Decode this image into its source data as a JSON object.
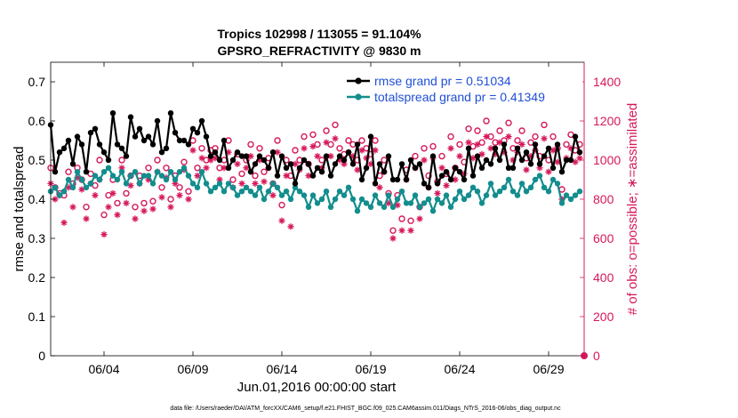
{
  "chart_data": {
    "type": "line",
    "title_line1": "Tropics 102998 / 113055 = 91.104%",
    "title_line2": "GPSRO_REFRACTIVITY @ 9830 m",
    "xlabel": "Jun.01,2016 00:00:00 start",
    "ylabel_left": "rmse and totalspread",
    "ylabel_right": "# of obs: o=possible; ∗=assimilated",
    "footer": "data file: /Users/raeder/DAI/ATM_forcXX/CAM6_setup/f.e21.FHIST_BGC.f09_025.CAM6assim.011/Diags_NTrS_2016-06/obs_diag_output.nc",
    "x_range": [
      1,
      31
    ],
    "x_ticks": [
      {
        "x": 4.0,
        "label": "06/04"
      },
      {
        "x": 9.0,
        "label": "06/09"
      },
      {
        "x": 14.0,
        "label": "06/14"
      },
      {
        "x": 19.0,
        "label": "06/19"
      },
      {
        "x": 24.0,
        "label": "06/24"
      },
      {
        "x": 29.0,
        "label": "06/29"
      }
    ],
    "ylim_left": [
      0,
      0.75
    ],
    "yticks_left": [
      "0",
      "0.1",
      "0.2",
      "0.3",
      "0.4",
      "0.5",
      "0.6",
      "0.7"
    ],
    "ylim_right": [
      0,
      1500
    ],
    "yticks_right": [
      "0",
      "200",
      "400",
      "600",
      "800",
      "1000",
      "1200",
      "1400"
    ],
    "colors": {
      "rmse": "#000000",
      "spread": "#138d8d",
      "obs": "#d6185c",
      "legend_text": "#1f4fd6"
    },
    "series": [
      {
        "name": "rmse grand pr = 0.51034",
        "axis": "left",
        "x": [
          1.0,
          1.25,
          1.5,
          1.75,
          2.0,
          2.25,
          2.5,
          2.75,
          3.0,
          3.25,
          3.5,
          3.75,
          4.0,
          4.25,
          4.5,
          4.75,
          5.0,
          5.25,
          5.5,
          5.75,
          6.0,
          6.25,
          6.5,
          6.75,
          7.0,
          7.25,
          7.5,
          7.75,
          8.0,
          8.25,
          8.5,
          8.75,
          9.0,
          9.25,
          9.5,
          9.75,
          10.0,
          10.25,
          10.5,
          10.75,
          11.0,
          11.25,
          11.5,
          11.75,
          12.0,
          12.25,
          12.5,
          12.75,
          13.0,
          13.25,
          13.5,
          13.75,
          14.0,
          14.25,
          14.5,
          14.75,
          15.0,
          15.25,
          15.5,
          15.75,
          16.0,
          16.25,
          16.5,
          16.75,
          17.0,
          17.25,
          17.5,
          17.75,
          18.0,
          18.25,
          18.5,
          18.75,
          19.0,
          19.25,
          19.5,
          19.75,
          20.0,
          20.25,
          20.5,
          20.75,
          21.0,
          21.25,
          21.5,
          21.75,
          22.0,
          22.25,
          22.5,
          22.75,
          23.0,
          23.25,
          23.5,
          23.75,
          24.0,
          24.25,
          24.5,
          24.75,
          25.0,
          25.25,
          25.5,
          25.75,
          26.0,
          26.25,
          26.5,
          26.75,
          27.0,
          27.25,
          27.5,
          27.75,
          28.0,
          28.25,
          28.5,
          28.75,
          29.0,
          29.25,
          29.5,
          29.75,
          30.0,
          30.25,
          30.5,
          30.75
        ],
        "values": [
          0.59,
          0.47,
          0.52,
          0.53,
          0.55,
          0.49,
          0.56,
          0.54,
          0.47,
          0.57,
          0.58,
          0.54,
          0.52,
          0.5,
          0.62,
          0.54,
          0.53,
          0.51,
          0.61,
          0.56,
          0.58,
          0.55,
          0.56,
          0.54,
          0.6,
          0.52,
          0.53,
          0.62,
          0.57,
          0.55,
          0.55,
          0.54,
          0.58,
          0.57,
          0.6,
          0.56,
          0.51,
          0.52,
          0.5,
          0.55,
          0.48,
          0.5,
          0.52,
          0.51,
          0.51,
          0.47,
          0.49,
          0.51,
          0.5,
          0.48,
          0.52,
          0.46,
          0.51,
          0.48,
          0.49,
          0.44,
          0.48,
          0.5,
          0.49,
          0.46,
          0.48,
          0.47,
          0.51,
          0.46,
          0.49,
          0.51,
          0.5,
          0.52,
          0.49,
          0.54,
          0.45,
          0.48,
          0.56,
          0.44,
          0.49,
          0.47,
          0.51,
          0.45,
          0.45,
          0.49,
          0.45,
          0.5,
          0.48,
          0.49,
          0.44,
          0.43,
          0.51,
          0.44,
          0.46,
          0.47,
          0.45,
          0.48,
          0.47,
          0.45,
          0.53,
          0.46,
          0.51,
          0.48,
          0.5,
          0.49,
          0.53,
          0.5,
          0.54,
          0.48,
          0.48,
          0.53,
          0.5,
          0.52,
          0.49,
          0.54,
          0.49,
          0.51,
          0.53,
          0.48,
          0.54,
          0.47,
          0.5,
          0.5,
          0.56,
          0.52
        ]
      },
      {
        "name": "totalspread grand pr = 0.41349",
        "axis": "left",
        "x": [
          1.0,
          1.25,
          1.5,
          1.75,
          2.0,
          2.25,
          2.5,
          2.75,
          3.0,
          3.25,
          3.5,
          3.75,
          4.0,
          4.25,
          4.5,
          4.75,
          5.0,
          5.25,
          5.5,
          5.75,
          6.0,
          6.25,
          6.5,
          6.75,
          7.0,
          7.25,
          7.5,
          7.75,
          8.0,
          8.25,
          8.5,
          8.75,
          9.0,
          9.25,
          9.5,
          9.75,
          10.0,
          10.25,
          10.5,
          10.75,
          11.0,
          11.25,
          11.5,
          11.75,
          12.0,
          12.25,
          12.5,
          12.75,
          13.0,
          13.25,
          13.5,
          13.75,
          14.0,
          14.25,
          14.5,
          14.75,
          15.0,
          15.25,
          15.5,
          15.75,
          16.0,
          16.25,
          16.5,
          16.75,
          17.0,
          17.25,
          17.5,
          17.75,
          18.0,
          18.25,
          18.5,
          18.75,
          19.0,
          19.25,
          19.5,
          19.75,
          20.0,
          20.25,
          20.5,
          20.75,
          21.0,
          21.25,
          21.5,
          21.75,
          22.0,
          22.25,
          22.5,
          22.75,
          23.0,
          23.25,
          23.5,
          23.75,
          24.0,
          24.25,
          24.5,
          24.75,
          25.0,
          25.25,
          25.5,
          25.75,
          26.0,
          26.25,
          26.5,
          26.75,
          27.0,
          27.25,
          27.5,
          27.75,
          28.0,
          28.25,
          28.5,
          28.75,
          29.0,
          29.25,
          29.5,
          29.75,
          30.0,
          30.25,
          30.5,
          30.75
        ],
        "values": [
          0.42,
          0.43,
          0.41,
          0.42,
          0.45,
          0.43,
          0.47,
          0.45,
          0.43,
          0.44,
          0.46,
          0.45,
          0.47,
          0.48,
          0.46,
          0.45,
          0.47,
          0.44,
          0.46,
          0.47,
          0.44,
          0.46,
          0.46,
          0.44,
          0.47,
          0.46,
          0.45,
          0.47,
          0.45,
          0.47,
          0.48,
          0.46,
          0.44,
          0.43,
          0.47,
          0.44,
          0.42,
          0.43,
          0.44,
          0.42,
          0.44,
          0.43,
          0.41,
          0.42,
          0.43,
          0.42,
          0.41,
          0.43,
          0.4,
          0.42,
          0.44,
          0.43,
          0.41,
          0.42,
          0.4,
          0.43,
          0.42,
          0.41,
          0.38,
          0.41,
          0.39,
          0.4,
          0.42,
          0.38,
          0.4,
          0.42,
          0.41,
          0.43,
          0.4,
          0.37,
          0.4,
          0.39,
          0.38,
          0.41,
          0.39,
          0.38,
          0.41,
          0.38,
          0.4,
          0.42,
          0.39,
          0.39,
          0.41,
          0.38,
          0.39,
          0.4,
          0.37,
          0.4,
          0.39,
          0.41,
          0.38,
          0.4,
          0.42,
          0.4,
          0.41,
          0.43,
          0.42,
          0.39,
          0.41,
          0.44,
          0.41,
          0.42,
          0.43,
          0.45,
          0.42,
          0.41,
          0.44,
          0.42,
          0.43,
          0.45,
          0.46,
          0.43,
          0.42,
          0.45,
          0.44,
          0.39,
          0.41,
          0.4,
          0.41,
          0.42
        ]
      }
    ],
    "obs_possible": {
      "name": "possible",
      "axis": "right",
      "x": [
        1.0,
        1.25,
        1.5,
        1.75,
        2.0,
        2.25,
        2.5,
        2.75,
        3.0,
        3.25,
        3.5,
        3.75,
        4.0,
        4.25,
        4.5,
        4.75,
        5.0,
        5.25,
        5.5,
        5.75,
        6.0,
        6.25,
        6.5,
        6.75,
        7.0,
        7.25,
        7.5,
        7.75,
        8.0,
        8.25,
        8.5,
        8.75,
        9.0,
        9.25,
        9.5,
        9.75,
        10.0,
        10.25,
        10.5,
        10.75,
        11.0,
        11.25,
        11.5,
        11.75,
        12.0,
        12.25,
        12.5,
        12.75,
        13.0,
        13.25,
        13.5,
        13.75,
        14.0,
        14.25,
        14.5,
        14.75,
        15.0,
        15.25,
        15.5,
        15.75,
        16.0,
        16.25,
        16.5,
        16.75,
        17.0,
        17.25,
        17.5,
        17.75,
        18.0,
        18.25,
        18.5,
        18.75,
        19.0,
        19.25,
        19.5,
        19.75,
        20.0,
        20.25,
        20.5,
        20.75,
        21.0,
        21.25,
        21.5,
        21.75,
        22.0,
        22.25,
        22.5,
        22.75,
        23.0,
        23.25,
        23.5,
        23.75,
        24.0,
        24.25,
        24.5,
        24.75,
        25.0,
        25.25,
        25.5,
        25.75,
        26.0,
        26.25,
        26.5,
        26.75,
        27.0,
        27.25,
        27.5,
        27.75,
        28.0,
        28.25,
        28.5,
        28.75,
        29.0,
        29.25,
        29.5,
        29.75,
        30.0,
        30.25,
        30.5,
        30.75
      ],
      "values": [
        960,
        860,
        830,
        820,
        940,
        880,
        960,
        900,
        760,
        930,
        870,
        1000,
        720,
        820,
        900,
        780,
        1000,
        830,
        920,
        760,
        920,
        780,
        960,
        790,
        1000,
        860,
        960,
        800,
        920,
        860,
        990,
        840,
        1100,
        960,
        1060,
        1000,
        1050,
        1060,
        960,
        1000,
        1100,
        900,
        1030,
        930,
        1000,
        1080,
        920,
        1060,
        940,
        1010,
        880,
        1100,
        770,
        1000,
        920,
        1050,
        1000,
        1120,
        980,
        1130,
        1080,
        1000,
        1150,
        1080,
        1180,
        1060,
        1030,
        1100,
        1080,
        1000,
        1100,
        1060,
        1030,
        1100,
        920,
        1000,
        830,
        640,
        820,
        700,
        950,
        690,
        1020,
        760,
        1060,
        920,
        1070,
        890,
        1020,
        930,
        1120,
        960,
        1080,
        990,
        1160,
        1070,
        1150,
        1090,
        1200,
        1120,
        1090,
        1150,
        1100,
        1190,
        1060,
        1100,
        1150,
        1010,
        1090,
        1120,
        1020,
        1180,
        1000,
        1120,
        1060,
        850,
        1080,
        1130,
        1050,
        1080
      ]
    },
    "obs_assimilated": {
      "name": "assimilated",
      "axis": "right",
      "x": [
        1.0,
        1.25,
        1.5,
        1.75,
        2.0,
        2.25,
        2.5,
        2.75,
        3.0,
        3.25,
        3.5,
        3.75,
        4.0,
        4.25,
        4.5,
        4.75,
        5.0,
        5.25,
        5.5,
        5.75,
        6.0,
        6.25,
        6.5,
        6.75,
        7.0,
        7.25,
        7.5,
        7.75,
        8.0,
        8.25,
        8.5,
        8.75,
        9.0,
        9.25,
        9.5,
        9.75,
        10.0,
        10.25,
        10.5,
        10.75,
        11.0,
        11.25,
        11.5,
        11.75,
        12.0,
        12.25,
        12.5,
        12.75,
        13.0,
        13.25,
        13.5,
        13.75,
        14.0,
        14.25,
        14.5,
        14.75,
        15.0,
        15.25,
        15.5,
        15.75,
        16.0,
        16.25,
        16.5,
        16.75,
        17.0,
        17.25,
        17.5,
        17.75,
        18.0,
        18.25,
        18.5,
        18.75,
        19.0,
        19.25,
        19.5,
        19.75,
        20.0,
        20.25,
        20.5,
        20.75,
        21.0,
        21.25,
        21.5,
        21.75,
        22.0,
        22.25,
        22.5,
        22.75,
        23.0,
        23.25,
        23.5,
        23.75,
        24.0,
        24.25,
        24.5,
        24.75,
        25.0,
        25.25,
        25.5,
        25.75,
        26.0,
        26.25,
        26.5,
        26.75,
        27.0,
        27.25,
        27.5,
        27.75,
        28.0,
        28.25,
        28.5,
        28.75,
        29.0,
        29.25,
        29.5,
        29.75,
        30.0,
        30.25,
        30.5,
        30.75
      ],
      "values": [
        880,
        800,
        820,
        680,
        860,
        760,
        910,
        850,
        700,
        880,
        820,
        900,
        620,
        760,
        830,
        720,
        960,
        780,
        870,
        700,
        880,
        740,
        900,
        750,
        940,
        810,
        910,
        760,
        880,
        820,
        950,
        800,
        1050,
        920,
        1010,
        960,
        1000,
        1010,
        900,
        960,
        1040,
        860,
        980,
        880,
        960,
        1020,
        880,
        1000,
        890,
        960,
        820,
        1040,
        690,
        920,
        660,
        980,
        950,
        1060,
        920,
        1070,
        1020,
        960,
        1090,
        1020,
        1110,
        1000,
        980,
        1040,
        1020,
        950,
        1050,
        1010,
        980,
        1050,
        860,
        940,
        780,
        600,
        770,
        640,
        900,
        640,
        960,
        700,
        1000,
        860,
        1010,
        830,
        960,
        870,
        1060,
        900,
        1020,
        930,
        1090,
        1010,
        1080,
        1030,
        1120,
        1060,
        1030,
        1090,
        1040,
        1120,
        1000,
        1040,
        1080,
        950,
        1020,
        1050,
        960,
        1110,
        940,
        1050,
        990,
        800,
        1010,
        1060,
        990,
        1010
      ]
    }
  }
}
